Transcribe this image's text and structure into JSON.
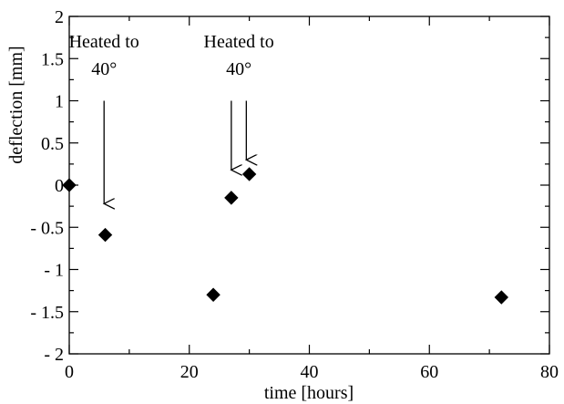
{
  "chart_data": {
    "type": "scatter",
    "xlabel": "time [hours]",
    "ylabel": "deflection [mm]",
    "xlim": [
      0,
      80
    ],
    "ylim": [
      -2,
      2
    ],
    "x_ticks": [
      "0",
      "20",
      "40",
      "60",
      "80"
    ],
    "y_ticks": [
      "- 2",
      "- 1.5",
      "- 1",
      "- 0.5",
      "0",
      "0.5",
      "1",
      "1.5",
      "2"
    ],
    "grid": false,
    "marker": "diamond",
    "marker_color": "#000000",
    "points": [
      {
        "x": 0,
        "y": 0.0
      },
      {
        "x": 6,
        "y": -0.59
      },
      {
        "x": 24,
        "y": -1.3
      },
      {
        "x": 27,
        "y": -0.15
      },
      {
        "x": 30,
        "y": 0.13
      },
      {
        "x": 72,
        "y": -1.33
      }
    ],
    "annotations": [
      {
        "lines": [
          "Heated to",
          "40°"
        ],
        "arrows": [
          {
            "x": 5.8,
            "from_y": 1.0,
            "to_y": -0.22
          }
        ]
      },
      {
        "lines": [
          "Heated to",
          "40°"
        ],
        "arrows": [
          {
            "x": 27.0,
            "from_y": 1.0,
            "to_y": 0.18
          },
          {
            "x": 29.5,
            "from_y": 1.0,
            "to_y": 0.3
          }
        ]
      }
    ]
  }
}
